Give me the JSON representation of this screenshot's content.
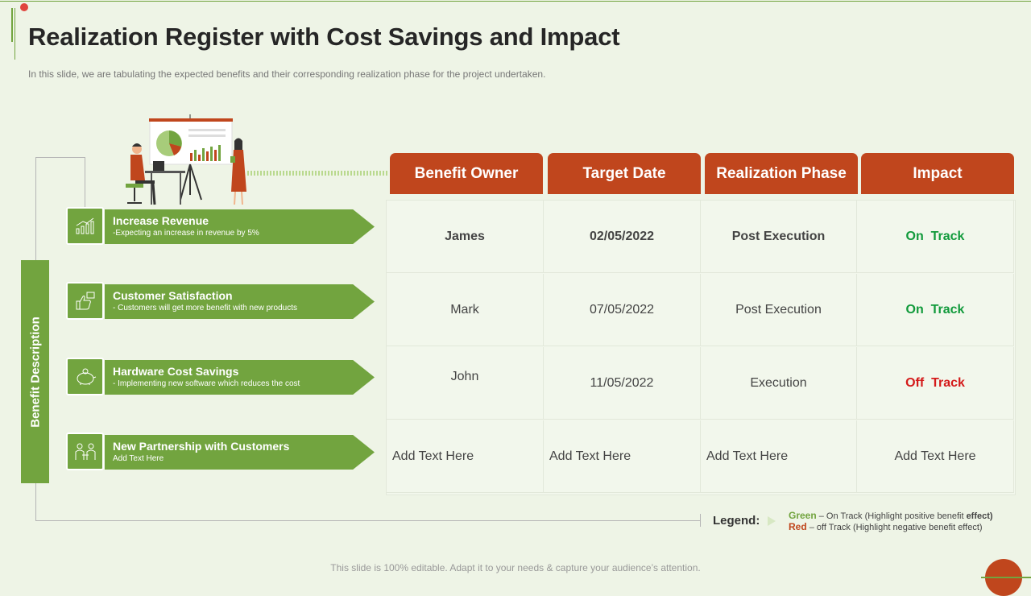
{
  "header": {
    "title": "Realization Register with Cost Savings and Impact",
    "subtitle": "In this slide, we are tabulating the expected benefits and their corresponding realization phase for the project undertaken."
  },
  "side_label": "Benefit Description",
  "benefits": [
    {
      "title": "Increase Revenue",
      "desc": "-Expecting an increase in revenue by 5%",
      "icon": "growth-chart-icon"
    },
    {
      "title": "Customer Satisfaction",
      "desc": "- Customers will get more benefit with new products",
      "icon": "thumbs-up-icon"
    },
    {
      "title": "Hardware Cost Savings",
      "desc": "- Implementing   new software which reduces the cost",
      "icon": "piggy-bank-icon"
    },
    {
      "title": "New Partnership with Customers",
      "desc": "Add Text Here",
      "icon": "partnership-icon"
    }
  ],
  "table": {
    "headers": [
      "Benefit Owner",
      "Target Date",
      "Realization Phase",
      "Impact"
    ],
    "rows": [
      [
        "James",
        "02/05/2022",
        "Post Execution",
        "On  Track"
      ],
      [
        "Mark",
        "07/05/2022",
        "Post Execution",
        "On  Track"
      ],
      [
        "John",
        "11/05/2022",
        "Execution",
        "Off  Track"
      ],
      [
        "Add Text Here",
        "Add Text Here",
        "Add Text Here",
        "Add Text Here"
      ]
    ]
  },
  "legend": {
    "label": "Legend:",
    "green_word": "Green",
    "green_text": " – On Track (Highlight positive benefit ",
    "green_bold": "effect)",
    "red_word": "Red",
    "red_text": " – off Track (Highlight negative benefit effect)"
  },
  "footer": "This slide is 100% editable. Adapt it to your needs & capture your audience’s attention.",
  "colors": {
    "accent_green": "#72a43f",
    "header_orange": "#c0461d",
    "on_track": "#119a3b",
    "off_track": "#d41a1a"
  }
}
